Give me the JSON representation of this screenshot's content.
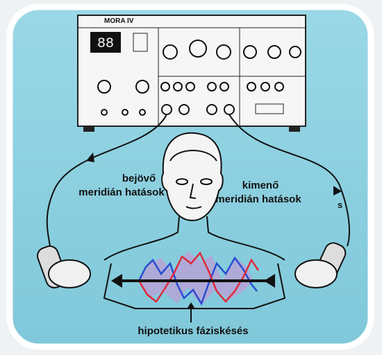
{
  "device": {
    "label": "MORA IV"
  },
  "incoming": {
    "lines": [
      "bejövő",
      "meridián hatások"
    ]
  },
  "outgoing": {
    "lines": [
      "kimenő",
      "meridián hatások"
    ],
    "mark": "s"
  },
  "caption": "hipotetikus fáziskésés"
}
